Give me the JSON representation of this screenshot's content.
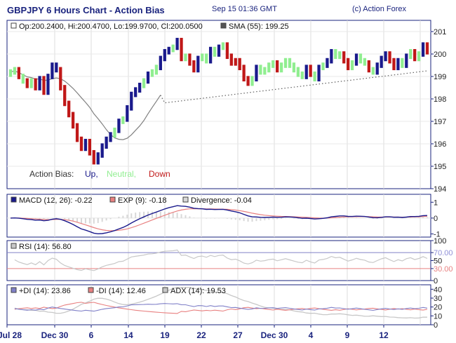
{
  "header": {
    "title": "GBPJPY 6 Hours Chart - Action Bias",
    "timestamp": "Sep 15 01:36 GMT",
    "credit": "(c) Action Forex"
  },
  "colors": {
    "up": "#1a1a8c",
    "neutral": "#90ee90",
    "down": "#c01818",
    "sma": "#808080",
    "macd": "#1a1a8c",
    "exp": "#e88080",
    "divergence": "#d8d8d8",
    "rsi": "#c8c8c8",
    "plus_di": "#8080c8",
    "minus_di": "#e88080",
    "adx": "#c8c8c8",
    "frame": "#1a237e"
  },
  "price_panel": {
    "ohlc": "Op:200.2400, Hi:200.4700, Lo:199.9700, Cl:200.0500",
    "sma_label": "SMA (55): 199.25",
    "bias_label": "Action Bias:",
    "bias_up": "Up,",
    "bias_neutral": "Neutral,",
    "bias_down": "Down",
    "y_ticks": [
      "201",
      "200",
      "199",
      "198",
      "197",
      "196",
      "195",
      "194"
    ]
  },
  "macd_panel": {
    "macd_label": "MACD (12, 26): -0.22",
    "exp_label": "EXP (9): -0.18",
    "div_label": "Divergence: -0.04",
    "y_ticks": [
      "1",
      "0",
      "-1"
    ]
  },
  "rsi_panel": {
    "rsi_label": "RSI (14): 56.80",
    "y_ticks": [
      "100",
      "70.00",
      "50",
      "30.00",
      "0"
    ]
  },
  "adx_panel": {
    "plus_label": "+DI (14): 23.86",
    "minus_label": "-DI (14): 12.46",
    "adx_label": "ADX (14): 19.53",
    "y_ticks": [
      "40",
      "30",
      "20",
      "10",
      "0"
    ]
  },
  "x_axis": {
    "labels": [
      "Jul 28",
      "Dec 30",
      "6",
      "14",
      "19",
      "22",
      "27",
      "Dec 30",
      "4",
      "9",
      "12"
    ]
  },
  "chart_data": {
    "type": "line",
    "title": "GBPJPY 6 Hours Chart - Action Bias",
    "price_ylim": [
      194,
      201.5
    ],
    "close": [
      199.2,
      199.3,
      199,
      198.8,
      198.6,
      198.8,
      198.5,
      198.9,
      198.3,
      199,
      199.5,
      199.3,
      198.5,
      197.8,
      197.3,
      196.8,
      196.2,
      195.8,
      196.1,
      195.6,
      195.2,
      195.5,
      195.9,
      196.2,
      196.4,
      196.6,
      197,
      197.1,
      197.6,
      198.2,
      198.4,
      198.6,
      198.8,
      199.1,
      199.2,
      199.4,
      199.8,
      200.1,
      200.2,
      200.3,
      200.6,
      199.8,
      199.9,
      199.6,
      199.3,
      199.8,
      199.9,
      199.7,
      200.2,
      200,
      200.3,
      200.4,
      199.9,
      199.6,
      199.7,
      199.4,
      198.9,
      198.7,
      198.9,
      199.4,
      199.2,
      199.3,
      199.5,
      199.6,
      199.3,
      199.5,
      199.7,
      199.5,
      199.3,
      199.1,
      199,
      199.4,
      199.1,
      198.9,
      199.4,
      199.5,
      199.7,
      200.1,
      199.9,
      200,
      199.7,
      199.4,
      199.6,
      199.9,
      199.7,
      199.6,
      199.3,
      199.2,
      199.5,
      199.8,
      200,
      199.7,
      199.4,
      199.7,
      199.5,
      199.9,
      200.1,
      199.8,
      200,
      200.4,
      200.1
    ],
    "sma_start": 199,
    "sma_end": 199.25,
    "macd_ylim": [
      -1.2,
      1.5
    ],
    "rsi_ylim": [
      0,
      100
    ],
    "di_ylim": [
      0,
      45
    ],
    "latest": {
      "open": 200.24,
      "high": 200.47,
      "low": 199.97,
      "close": 200.05,
      "sma": 199.25,
      "macd": -0.22,
      "exp": -0.18,
      "divergence": -0.04,
      "rsi": 56.8,
      "plus_di": 23.86,
      "minus_di": 12.46,
      "adx": 19.53
    }
  }
}
